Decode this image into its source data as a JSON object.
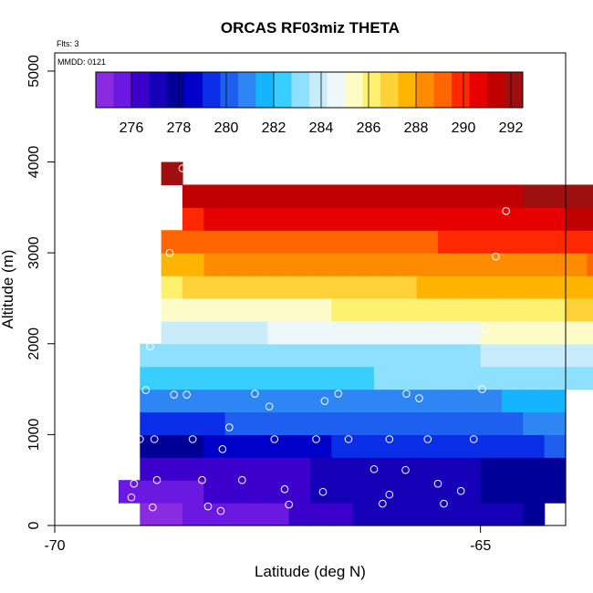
{
  "chart_data": {
    "type": "heatmap",
    "title": "ORCAS RF03miz THETA",
    "flights_note": "Flts: 3",
    "date_note": "MMDD: 0121",
    "xlabel": "Latitude (deg N)",
    "ylabel": "Altitude (m)",
    "xlim": [
      -70,
      -64
    ],
    "ylim": [
      0,
      5200
    ],
    "xticks": [
      -70,
      -65
    ],
    "yticks": [
      0,
      1000,
      2000,
      3000,
      4000,
      5000
    ],
    "colorbar": {
      "range": [
        274.5,
        292.5
      ],
      "ticks": [
        276,
        278,
        280,
        282,
        284,
        286,
        288,
        290,
        292
      ],
      "colors": [
        "#8a2be2",
        "#6b18e0",
        "#3c00cc",
        "#1500b8",
        "#000099",
        "#0000c8",
        "#0a2ee8",
        "#1f5ff0",
        "#2e86f5",
        "#14b4ff",
        "#38cfff",
        "#8ee0ff",
        "#c9ecfb",
        "#eef8fb",
        "#fdfbc8",
        "#fff170",
        "#ffd23a",
        "#ffb400",
        "#ff8c00",
        "#ff6600",
        "#ff2800",
        "#e60000",
        "#c00000",
        "#9e1010"
      ]
    },
    "bin_size": {
      "lat": 0.25,
      "alt": 250
    },
    "bins": [
      {
        "alt": 0,
        "lat_start": -69.0,
        "values": [
          275.1,
          275.2,
          275.3,
          275.5,
          275.4,
          275.6,
          275.9,
          276.1,
          276.3,
          276.6,
          276.8,
          276.9,
          277.0,
          277.1,
          277.2,
          277.3,
          277.4,
          277.4,
          277.6
        ]
      },
      {
        "alt": 250,
        "lat_start": -69.25,
        "values": [
          275.3,
          275.4,
          275.6,
          275.8,
          276.0,
          276.1,
          276.3,
          276.5,
          276.7,
          276.8,
          276.9,
          277.0,
          277.1,
          277.2,
          277.3,
          277.3,
          277.4,
          277.5,
          277.6,
          277.7,
          277.8
        ]
      },
      {
        "alt": 500,
        "lat_start": -69.0,
        "values": [
          276.2,
          276.4,
          276.5,
          276.6,
          276.6,
          276.7,
          276.7,
          276.7,
          276.8,
          276.8,
          276.8,
          276.9,
          276.9,
          277.0,
          277.1,
          277.3,
          277.7,
          278.1,
          277.8,
          277.6
        ]
      },
      {
        "alt": 750,
        "lat_start": -69.0,
        "values": [
          277.6,
          277.8,
          278.0,
          278.3,
          278.5,
          278.7,
          278.7,
          278.8,
          278.9,
          279.0,
          279.1,
          279.2,
          279.2,
          279.3,
          279.3,
          279.4,
          279.5,
          279.6,
          279.7,
          280.2
        ]
      },
      {
        "alt": 1000,
        "lat_start": -69.0,
        "values": [
          279.3,
          279.5,
          279.6,
          279.7,
          279.8,
          279.9,
          280.0,
          280.1,
          280.1,
          280.2,
          280.2,
          280.2,
          280.3,
          280.3,
          280.3,
          280.3,
          280.4,
          280.4,
          280.5,
          280.8
        ]
      },
      {
        "alt": 1250,
        "lat_start": -69.0,
        "values": [
          280.5,
          280.6,
          280.7,
          280.8,
          280.8,
          280.9,
          280.9,
          281.0,
          281.0,
          281.0,
          281.0,
          281.1,
          281.1,
          281.1,
          281.2,
          281.2,
          281.2,
          281.3,
          281.3,
          281.4
        ]
      },
      {
        "alt": 1500,
        "lat_start": -69.0,
        "values": [
          282.0,
          282.2,
          282.3,
          282.4,
          282.5,
          282.5,
          282.6,
          282.6,
          282.7,
          282.7,
          282.7,
          282.8,
          282.8,
          282.8,
          282.8,
          282.9,
          282.9,
          283.0,
          283.0,
          283.1,
          283.1,
          283.2
        ]
      },
      {
        "alt": 1750,
        "lat_start": -69.0,
        "values": [
          283.0,
          283.0,
          283.1,
          283.1,
          283.2,
          283.2,
          283.2,
          283.3,
          283.3,
          283.3,
          283.3,
          283.3,
          283.4,
          283.4,
          283.4,
          283.4,
          283.5,
          283.5,
          283.5,
          283.5,
          283.6,
          283.6
        ]
      },
      {
        "alt": 2000,
        "lat_start": -68.75,
        "values": [
          283.8,
          283.9,
          284.0,
          284.1,
          284.2,
          284.3,
          284.3,
          284.4,
          284.4,
          284.5,
          284.5,
          284.6,
          284.7,
          284.8,
          284.9,
          285.0,
          285.1,
          285.2,
          285.3,
          285.4,
          285.5
        ]
      },
      {
        "alt": 2250,
        "lat_start": -68.75,
        "values": [
          285.0,
          285.1,
          285.2,
          285.3,
          285.4,
          285.5,
          285.6,
          285.7,
          285.8,
          285.9,
          286.0,
          286.0,
          286.1,
          286.1,
          286.2,
          286.2,
          286.3,
          286.3,
          286.4,
          286.5,
          286.6
        ]
      },
      {
        "alt": 2500,
        "lat_start": -68.75,
        "values": [
          286.4,
          286.5,
          286.6,
          286.7,
          286.8,
          286.9,
          287.0,
          287.0,
          287.1,
          287.1,
          287.2,
          287.2,
          287.3,
          287.3,
          287.4,
          287.4,
          287.5,
          287.6,
          287.7,
          287.8,
          287.9
        ]
      },
      {
        "alt": 2750,
        "lat_start": -68.75,
        "values": [
          287.8,
          287.9,
          288.0,
          288.0,
          288.1,
          288.1,
          288.2,
          288.2,
          288.2,
          288.3,
          288.3,
          288.3,
          288.4,
          288.4,
          288.4,
          288.5,
          288.5,
          288.6,
          288.6,
          288.7,
          288.8,
          288.9
        ]
      },
      {
        "alt": 3000,
        "lat_start": -68.75,
        "values": [
          288.9,
          289.0,
          289.0,
          289.1,
          289.1,
          289.2,
          289.2,
          289.3,
          289.3,
          289.3,
          289.4,
          289.4,
          289.4,
          289.5,
          289.5,
          289.5,
          289.6,
          289.6,
          289.7,
          289.7,
          289.8,
          289.9
        ]
      },
      {
        "alt": 3250,
        "lat_start": -68.5,
        "values": [
          290.2,
          290.3,
          290.3,
          290.4,
          290.4,
          290.5,
          290.5,
          290.5,
          290.6,
          290.6,
          290.6,
          290.7,
          290.7,
          290.7,
          290.8,
          290.8,
          290.9,
          290.9,
          291.0,
          291.0
        ]
      },
      {
        "alt": 3500,
        "lat_start": -68.5,
        "values": [
          291.0,
          291.1,
          291.1,
          291.2,
          291.2,
          291.3,
          291.3,
          291.3,
          291.4,
          291.4,
          291.5,
          291.5,
          291.6,
          291.6,
          291.7,
          291.7,
          291.8,
          291.8,
          291.9,
          292.0
        ]
      },
      {
        "alt": 3750,
        "lat_start": -68.75,
        "values": [
          292.2
        ]
      }
    ],
    "points": [
      {
        "lat": -68.5,
        "alt": 3930
      },
      {
        "lat": -64.7,
        "alt": 3460
      },
      {
        "lat": -68.65,
        "alt": 3000
      },
      {
        "lat": -64.82,
        "alt": 2960
      },
      {
        "lat": -68.8,
        "alt": 2310
      },
      {
        "lat": -64.94,
        "alt": 2160
      },
      {
        "lat": -68.88,
        "alt": 1970
      },
      {
        "lat": -64.98,
        "alt": 1500
      },
      {
        "lat": -68.93,
        "alt": 1490
      },
      {
        "lat": -68.6,
        "alt": 1440
      },
      {
        "lat": -68.45,
        "alt": 1440
      },
      {
        "lat": -67.65,
        "alt": 1450
      },
      {
        "lat": -67.48,
        "alt": 1310
      },
      {
        "lat": -66.83,
        "alt": 1370
      },
      {
        "lat": -66.67,
        "alt": 1450
      },
      {
        "lat": -65.87,
        "alt": 1450
      },
      {
        "lat": -65.72,
        "alt": 1400
      },
      {
        "lat": -67.95,
        "alt": 1080
      },
      {
        "lat": -68.03,
        "alt": 840
      },
      {
        "lat": -69.0,
        "alt": 950
      },
      {
        "lat": -68.83,
        "alt": 950
      },
      {
        "lat": -68.38,
        "alt": 950
      },
      {
        "lat": -67.42,
        "alt": 950
      },
      {
        "lat": -66.93,
        "alt": 950
      },
      {
        "lat": -66.55,
        "alt": 950
      },
      {
        "lat": -66.07,
        "alt": 950
      },
      {
        "lat": -65.62,
        "alt": 950
      },
      {
        "lat": -65.08,
        "alt": 950
      },
      {
        "lat": -66.25,
        "alt": 620
      },
      {
        "lat": -65.88,
        "alt": 610
      },
      {
        "lat": -68.8,
        "alt": 500
      },
      {
        "lat": -68.27,
        "alt": 500
      },
      {
        "lat": -67.8,
        "alt": 500
      },
      {
        "lat": -69.07,
        "alt": 460
      },
      {
        "lat": -65.5,
        "alt": 460
      },
      {
        "lat": -67.3,
        "alt": 400
      },
      {
        "lat": -66.85,
        "alt": 370
      },
      {
        "lat": -65.23,
        "alt": 380
      },
      {
        "lat": -66.07,
        "alt": 340
      },
      {
        "lat": -69.1,
        "alt": 310
      },
      {
        "lat": -67.25,
        "alt": 230
      },
      {
        "lat": -66.15,
        "alt": 240
      },
      {
        "lat": -65.43,
        "alt": 240
      },
      {
        "lat": -68.2,
        "alt": 210
      },
      {
        "lat": -69.05,
        "alt": 180
      },
      {
        "lat": -68.85,
        "alt": 200
      },
      {
        "lat": -68.05,
        "alt": 160
      }
    ]
  }
}
